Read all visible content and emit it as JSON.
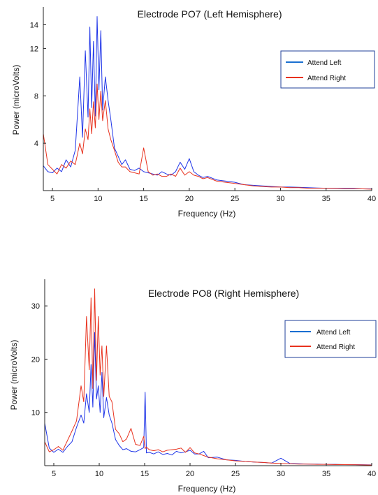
{
  "chart_data": [
    {
      "type": "line",
      "title": "Electrode PO7 (Left Hemisphere)",
      "xlabel": "Frequency (Hz)",
      "ylabel": "Power (microVolts)",
      "xlim": [
        4,
        40
      ],
      "ylim": [
        0,
        15.5
      ],
      "xticks": [
        5,
        10,
        15,
        20,
        25,
        30,
        35,
        40
      ],
      "yticks": [
        4,
        8,
        12,
        14
      ],
      "grid": false,
      "legend": "right",
      "series": [
        {
          "name": "Attend Left",
          "color": "#1f35e8",
          "legend_color": "#1a6fd1",
          "x": [
            4,
            4.5,
            5,
            5.5,
            6,
            6.5,
            7,
            7.5,
            8,
            8.3,
            8.6,
            8.9,
            9.1,
            9.3,
            9.5,
            9.7,
            9.9,
            10.1,
            10.3,
            10.5,
            10.8,
            11.1,
            11.4,
            11.8,
            12.2,
            12.6,
            13,
            13.5,
            14,
            14.5,
            15,
            15.5,
            16,
            16.5,
            17,
            17.5,
            18,
            18.5,
            19,
            19.5,
            20,
            20.5,
            21,
            21.5,
            22,
            23,
            24,
            25,
            26,
            27,
            28,
            29,
            30,
            31,
            32,
            33,
            34,
            35,
            36,
            37,
            38,
            39,
            40
          ],
          "values": [
            2.1,
            1.6,
            1.5,
            1.9,
            1.6,
            2.6,
            2.0,
            3.4,
            9.6,
            4.5,
            11.8,
            6.2,
            13.8,
            7.0,
            12.6,
            6.3,
            14.7,
            8.5,
            13.5,
            6.8,
            9.6,
            7.6,
            6.0,
            3.6,
            2.9,
            2.2,
            2.6,
            1.8,
            1.7,
            1.9,
            1.6,
            1.5,
            1.4,
            1.3,
            1.6,
            1.4,
            1.3,
            1.6,
            2.4,
            1.8,
            2.7,
            1.6,
            1.3,
            1.1,
            1.2,
            0.9,
            0.8,
            0.7,
            0.5,
            0.45,
            0.4,
            0.35,
            0.3,
            0.3,
            0.28,
            0.25,
            0.22,
            0.2,
            0.2,
            0.18,
            0.18,
            0.15,
            0.15
          ]
        },
        {
          "name": "Attend Right",
          "color": "#e8321e",
          "legend_color": "#e8321e",
          "x": [
            4,
            4.5,
            5,
            5.5,
            6,
            6.5,
            7,
            7.5,
            8,
            8.3,
            8.6,
            8.9,
            9.1,
            9.3,
            9.5,
            9.7,
            9.9,
            10.1,
            10.3,
            10.5,
            10.8,
            11.1,
            11.4,
            11.8,
            12.2,
            12.6,
            13,
            13.5,
            14,
            14.5,
            15,
            15.5,
            16,
            16.5,
            17,
            17.5,
            18,
            18.5,
            19,
            19.5,
            20,
            20.5,
            21,
            21.5,
            22,
            23,
            24,
            25,
            26,
            27,
            28,
            29,
            30,
            31,
            32,
            33,
            34,
            35,
            36,
            37,
            38,
            39,
            40
          ],
          "values": [
            4.8,
            2.2,
            1.8,
            1.4,
            2.2,
            1.9,
            2.5,
            2.2,
            4.0,
            3.1,
            5.2,
            4.3,
            6.9,
            4.8,
            7.5,
            5.3,
            9.0,
            6.0,
            8.4,
            5.9,
            7.6,
            5.2,
            4.3,
            3.4,
            2.4,
            2.0,
            2.0,
            1.6,
            1.5,
            1.4,
            3.6,
            1.6,
            1.3,
            1.4,
            1.2,
            1.2,
            1.4,
            1.2,
            1.9,
            1.3,
            1.6,
            1.3,
            1.2,
            1.0,
            1.1,
            0.8,
            0.7,
            0.6,
            0.5,
            0.4,
            0.35,
            0.3,
            0.3,
            0.25,
            0.25,
            0.2,
            0.2,
            0.2,
            0.18,
            0.15,
            0.15,
            0.15,
            0.12
          ]
        }
      ]
    },
    {
      "type": "line",
      "title": "Electrode PO8 (Right Hemisphere)",
      "xlabel": "Frequency (Hz)",
      "ylabel": "Power (microVolts)",
      "xlim": [
        4,
        40
      ],
      "ylim": [
        0,
        35
      ],
      "xticks": [
        5,
        10,
        15,
        20,
        25,
        30,
        35,
        40
      ],
      "yticks": [
        10,
        20,
        30
      ],
      "grid": false,
      "legend": "right",
      "series": [
        {
          "name": "Attend Left",
          "color": "#1f35e8",
          "legend_color": "#1a6fd1",
          "x": [
            4,
            4.5,
            5,
            5.5,
            6,
            6.5,
            7,
            7.5,
            8,
            8.3,
            8.6,
            8.9,
            9.1,
            9.3,
            9.5,
            9.7,
            9.9,
            10.1,
            10.3,
            10.5,
            10.8,
            11.1,
            11.4,
            11.8,
            12.2,
            12.6,
            13,
            13.5,
            14,
            14.5,
            14.9,
            15.05,
            15.2,
            15.5,
            16,
            16.5,
            17,
            17.5,
            18,
            18.5,
            19,
            19.5,
            20,
            20.5,
            21,
            21.5,
            22,
            23,
            24,
            25,
            26,
            27,
            28,
            29,
            30,
            31,
            32,
            33,
            34,
            35,
            36,
            37,
            38,
            39,
            40
          ],
          "values": [
            8.0,
            3.3,
            2.5,
            3.1,
            2.5,
            3.6,
            4.5,
            7.2,
            9.5,
            8.0,
            13.5,
            10.0,
            19.0,
            11.0,
            25.0,
            12.5,
            15.0,
            10.0,
            17.5,
            9.0,
            12.8,
            9.5,
            8.0,
            4.9,
            3.8,
            3.0,
            3.2,
            2.7,
            2.6,
            3.0,
            3.4,
            13.8,
            2.4,
            2.5,
            2.2,
            2.6,
            2.1,
            2.3,
            2.0,
            2.7,
            2.4,
            2.6,
            2.9,
            2.2,
            2.2,
            2.7,
            1.5,
            1.6,
            1.1,
            1.0,
            0.8,
            0.7,
            0.6,
            0.5,
            1.4,
            0.4,
            0.35,
            0.3,
            0.3,
            0.25,
            0.25,
            0.2,
            0.2,
            0.18,
            0.15
          ]
        },
        {
          "name": "Attend Right",
          "color": "#e8321e",
          "legend_color": "#e8321e",
          "x": [
            4,
            4.5,
            5,
            5.5,
            6,
            6.5,
            7,
            7.5,
            8,
            8.3,
            8.6,
            8.9,
            9.1,
            9.3,
            9.5,
            9.7,
            9.9,
            10.1,
            10.3,
            10.5,
            10.8,
            11.1,
            11.4,
            11.8,
            12.2,
            12.6,
            13,
            13.5,
            14,
            14.5,
            14.9,
            15.05,
            15.2,
            15.5,
            16,
            16.5,
            17,
            17.5,
            18,
            18.5,
            19,
            19.5,
            20,
            20.5,
            21,
            21.5,
            22,
            23,
            24,
            25,
            26,
            27,
            28,
            29,
            30,
            31,
            32,
            33,
            34,
            35,
            36,
            37,
            38,
            39,
            40
          ],
          "values": [
            4.5,
            2.6,
            3.0,
            3.6,
            2.9,
            4.7,
            6.5,
            8.4,
            15.0,
            12.0,
            28.0,
            18.0,
            31.5,
            14.5,
            33.2,
            16.0,
            28.0,
            17.0,
            22.5,
            13.0,
            22.5,
            13.0,
            12.0,
            6.8,
            6.0,
            4.5,
            5.0,
            7.0,
            4.0,
            3.8,
            5.5,
            3.2,
            3.5,
            3.0,
            2.8,
            3.0,
            2.6,
            2.9,
            3.0,
            3.1,
            3.3,
            2.5,
            3.4,
            2.4,
            2.2,
            1.9,
            1.6,
            1.3,
            1.1,
            0.9,
            0.8,
            0.7,
            0.6,
            0.5,
            0.4,
            0.35,
            0.3,
            0.3,
            0.25,
            0.25,
            0.2,
            0.2,
            0.18,
            0.15,
            0.12
          ]
        }
      ]
    }
  ]
}
